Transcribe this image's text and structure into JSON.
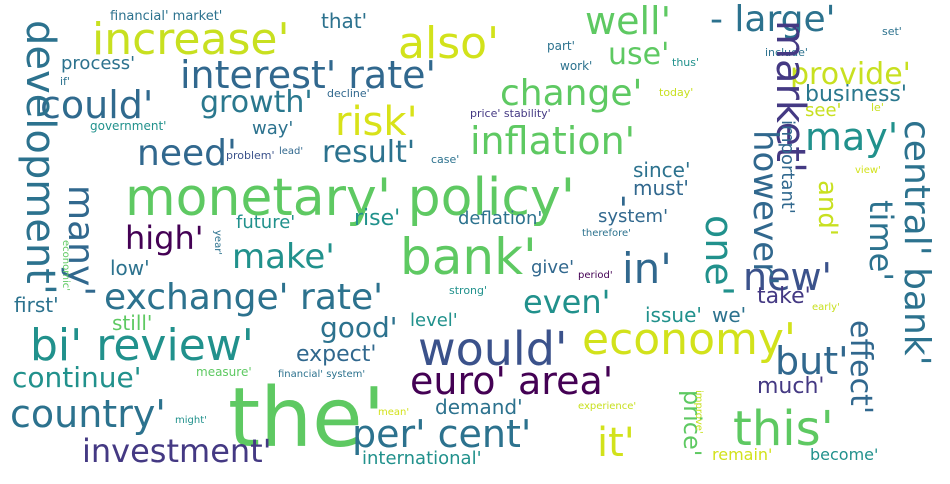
{
  "words": [
    {
      "text": "monetary' policy'",
      "color": "#5ec962",
      "size": 52,
      "rot": 0
    },
    {
      "text": "the'",
      "color": "#5ec962",
      "size": 82,
      "rot": 0
    },
    {
      "text": "bank'",
      "color": "#5ec962",
      "size": 50,
      "rot": 0
    },
    {
      "text": "increase'",
      "color": "#c8e020",
      "size": 44,
      "rot": 0
    },
    {
      "text": "also'",
      "color": "#d2e21b",
      "size": 44,
      "rot": 0
    },
    {
      "text": "well'",
      "color": "#5ec962",
      "size": 38,
      "rot": 0
    },
    {
      "text": "- large'",
      "color": "#2c728e",
      "size": 36,
      "rot": 0
    },
    {
      "text": "interest' rate'",
      "color": "#31688e",
      "size": 38,
      "rot": 0
    },
    {
      "text": "could'",
      "color": "#306a8e",
      "size": 38,
      "rot": 0
    },
    {
      "text": "growth'",
      "color": "#2a788e",
      "size": 30,
      "rot": 0
    },
    {
      "text": "risk'",
      "color": "#d8e219",
      "size": 40,
      "rot": 0
    },
    {
      "text": "change'",
      "color": "#5ec962",
      "size": 36,
      "rot": 0
    },
    {
      "text": "inflation'",
      "color": "#5ec962",
      "size": 38,
      "rot": 0
    },
    {
      "text": "need'",
      "color": "#31688e",
      "size": 36,
      "rot": 0
    },
    {
      "text": "result'",
      "color": "#2c728e",
      "size": 30,
      "rot": 0
    },
    {
      "text": "may'",
      "color": "#21918c",
      "size": 38,
      "rot": 0
    },
    {
      "text": "use'",
      "color": "#5ec962",
      "size": 30,
      "rot": 0
    },
    {
      "text": "provide'",
      "color": "#c8e020",
      "size": 30,
      "rot": 0
    },
    {
      "text": "business'",
      "color": "#2a788e",
      "size": 22,
      "rot": 0
    },
    {
      "text": "make'",
      "color": "#21918c",
      "size": 34,
      "rot": 0
    },
    {
      "text": "high'",
      "color": "#440154",
      "size": 32,
      "rot": 0
    },
    {
      "text": "exchange' rate'",
      "color": "#2c728e",
      "size": 36,
      "rot": 0
    },
    {
      "text": "in'",
      "color": "#31688e",
      "size": 42,
      "rot": 0
    },
    {
      "text": "new'",
      "color": "#3b528b",
      "size": 38,
      "rot": 0
    },
    {
      "text": "even'",
      "color": "#21918c",
      "size": 32,
      "rot": 0
    },
    {
      "text": "bi' review'",
      "color": "#21918c",
      "size": 44,
      "rot": 0
    },
    {
      "text": "would'",
      "color": "#3b528b",
      "size": 46,
      "rot": 0
    },
    {
      "text": "economy'",
      "color": "#d2e21b",
      "size": 44,
      "rot": 0
    },
    {
      "text": "good'",
      "color": "#2c728e",
      "size": 28,
      "rot": 0
    },
    {
      "text": "but'",
      "color": "#31688e",
      "size": 38,
      "rot": 0
    },
    {
      "text": "euro' area'",
      "color": "#440154",
      "size": 38,
      "rot": 0
    },
    {
      "text": "continue'",
      "color": "#21918c",
      "size": 28,
      "rot": 0
    },
    {
      "text": "country'",
      "color": "#2c728e",
      "size": 38,
      "rot": 0
    },
    {
      "text": "per' cent'",
      "color": "#2c728e",
      "size": 38,
      "rot": 0
    },
    {
      "text": "it'",
      "color": "#d2e21b",
      "size": 40,
      "rot": 0
    },
    {
      "text": "this'",
      "color": "#5ec962",
      "size": 48,
      "rot": 0
    },
    {
      "text": "investment'",
      "color": "#443983",
      "size": 32,
      "rot": 0
    },
    {
      "text": "expect'",
      "color": "#31688e",
      "size": 22,
      "rot": 0
    },
    {
      "text": "demand'",
      "color": "#2c728e",
      "size": 20,
      "rot": 0
    },
    {
      "text": "much'",
      "color": "#443983",
      "size": 22,
      "rot": 0
    },
    {
      "text": "take'",
      "color": "#443983",
      "size": 22,
      "rot": 0
    },
    {
      "text": "future'",
      "color": "#21918c",
      "size": 18,
      "rot": 0
    },
    {
      "text": "rise'",
      "color": "#21918c",
      "size": 22,
      "rot": 0
    },
    {
      "text": "deflation'",
      "color": "#2c728e",
      "size": 18,
      "rot": 0
    },
    {
      "text": "system'",
      "color": "#31688e",
      "size": 18,
      "rot": 0
    },
    {
      "text": "give'",
      "color": "#31688e",
      "size": 18,
      "rot": 0
    },
    {
      "text": "since'",
      "color": "#2c728e",
      "size": 20,
      "rot": 0
    },
    {
      "text": "must'",
      "color": "#31688e",
      "size": 20,
      "rot": 0
    },
    {
      "text": "low'",
      "color": "#2c728e",
      "size": 20,
      "rot": 0
    },
    {
      "text": "first'",
      "color": "#2c728e",
      "size": 20,
      "rot": 0
    },
    {
      "text": "still'",
      "color": "#5ec962",
      "size": 20,
      "rot": 0
    },
    {
      "text": "level'",
      "color": "#21918c",
      "size": 18,
      "rot": 0
    },
    {
      "text": "issue'",
      "color": "#21918c",
      "size": 20,
      "rot": 0
    },
    {
      "text": "we'",
      "color": "#2c728e",
      "size": 20,
      "rot": 0
    },
    {
      "text": "process'",
      "color": "#2c728e",
      "size": 18,
      "rot": 0
    },
    {
      "text": "way'",
      "color": "#2c728e",
      "size": 18,
      "rot": 0
    },
    {
      "text": "see'",
      "color": "#c8e020",
      "size": 18,
      "rot": 0
    },
    {
      "text": "that'",
      "color": "#2c728e",
      "size": 20,
      "rot": 0
    },
    {
      "text": "international'",
      "color": "#21918c",
      "size": 18,
      "rot": 0
    },
    {
      "text": "remain'",
      "color": "#d2e21b",
      "size": 16,
      "rot": 0
    },
    {
      "text": "become'",
      "color": "#21918c",
      "size": 16,
      "rot": 0
    },
    {
      "text": "financial' market'",
      "color": "#2c728e",
      "size": 13,
      "rot": 0
    },
    {
      "text": "government'",
      "color": "#21918c",
      "size": 12,
      "rot": 0
    },
    {
      "text": "part'",
      "color": "#2c728e",
      "size": 12,
      "rot": 0
    },
    {
      "text": "work'",
      "color": "#2c728e",
      "size": 12,
      "rot": 0
    },
    {
      "text": "thus'",
      "color": "#21918c",
      "size": 11,
      "rot": 0
    },
    {
      "text": "include'",
      "color": "#2c728e",
      "size": 11,
      "rot": 0
    },
    {
      "text": "set'",
      "color": "#2c728e",
      "size": 11,
      "rot": 0
    },
    {
      "text": "if'",
      "color": "#2c728e",
      "size": 11,
      "rot": 0
    },
    {
      "text": "decline'",
      "color": "#31688e",
      "size": 11,
      "rot": 0
    },
    {
      "text": "price' stability'",
      "color": "#443983",
      "size": 11,
      "rot": 0
    },
    {
      "text": "today'",
      "color": "#c8e020",
      "size": 11,
      "rot": 0
    },
    {
      "text": "le'",
      "color": "#c8e020",
      "size": 11,
      "rot": 0
    },
    {
      "text": "problem'",
      "color": "#3b528b",
      "size": 11,
      "rot": 0
    },
    {
      "text": "lead'",
      "color": "#31688e",
      "size": 10,
      "rot": 0
    },
    {
      "text": "case'",
      "color": "#2c728e",
      "size": 11,
      "rot": 0
    },
    {
      "text": "therefore'",
      "color": "#2c728e",
      "size": 10,
      "rot": 0
    },
    {
      "text": "period'",
      "color": "#440154",
      "size": 10,
      "rot": 0
    },
    {
      "text": "strong'",
      "color": "#21918c",
      "size": 11,
      "rot": 0
    },
    {
      "text": "measure'",
      "color": "#5ec962",
      "size": 12,
      "rot": 0
    },
    {
      "text": "financial' system'",
      "color": "#2c728e",
      "size": 10,
      "rot": 0
    },
    {
      "text": "mean'",
      "color": "#d2e21b",
      "size": 10,
      "rot": 0
    },
    {
      "text": "experience'",
      "color": "#c8e020",
      "size": 10,
      "rot": 0
    },
    {
      "text": "might'",
      "color": "#21918c",
      "size": 10,
      "rot": 0
    },
    {
      "text": "early'",
      "color": "#c8e020",
      "size": 10,
      "rot": 0
    },
    {
      "text": "view'",
      "color": "#d2e21b",
      "size": 10,
      "rot": 0
    },
    {
      "text": "development'",
      "color": "#2c728e",
      "size": 40,
      "rot": 90
    },
    {
      "text": "many'",
      "color": "#31688e",
      "size": 36,
      "rot": 90
    },
    {
      "text": "market'",
      "color": "#443983",
      "size": 40,
      "rot": 90
    },
    {
      "text": "however'",
      "color": "#31688e",
      "size": 34,
      "rot": 90
    },
    {
      "text": "one'",
      "color": "#21918c",
      "size": 38,
      "rot": 90
    },
    {
      "text": "central' bank'",
      "color": "#2c728e",
      "size": 36,
      "rot": 90
    },
    {
      "text": "time'",
      "color": "#2c728e",
      "size": 32,
      "rot": 90
    },
    {
      "text": "effect'",
      "color": "#31688e",
      "size": 30,
      "rot": 90
    },
    {
      "text": "and'",
      "color": "#c8e020",
      "size": 26,
      "rot": 90
    },
    {
      "text": "price'",
      "color": "#5ec962",
      "size": 24,
      "rot": 90
    },
    {
      "text": "important'",
      "color": "#31688e",
      "size": 18,
      "rot": 90
    },
    {
      "text": "-",
      "color": "#2c728e",
      "size": 34,
      "rot": 90
    },
    {
      "text": "-",
      "color": "#31688e",
      "size": 34,
      "rot": 90
    },
    {
      "text": "economic'",
      "color": "#5ec962",
      "size": 10,
      "rot": 90
    },
    {
      "text": "year'",
      "color": "#2c728e",
      "size": 10,
      "rot": 90
    },
    {
      "text": "improve'",
      "color": "#c8e020",
      "size": 10,
      "rot": 90
    }
  ]
}
